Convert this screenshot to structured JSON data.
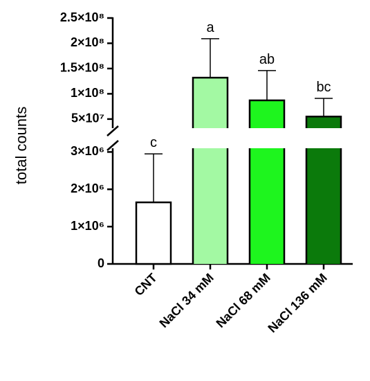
{
  "chart_data": {
    "type": "bar",
    "y_label": "total counts",
    "categories": [
      "CNT",
      "NaCl 34 mM",
      "NaCl 68 mM",
      "NaCl 136 mM"
    ],
    "values": [
      1650000,
      132000000,
      87000000,
      55000000
    ],
    "errors": [
      1300000,
      77000000,
      59000000,
      36000000
    ],
    "annotations": [
      "c",
      "a",
      "ab",
      "bc"
    ],
    "colors": [
      "#ffffff",
      "#a3f9a3",
      "#1ef51e",
      "#0b7a0b"
    ],
    "y_segments": [
      {
        "ylim": [
          0,
          3100000
        ],
        "yticks": [
          0,
          {
            "value": 1000000,
            "label": "1×10⁶"
          },
          {
            "value": 2000000,
            "label": "2×10⁶"
          },
          {
            "value": 3000000,
            "label": "3×10⁶"
          }
        ]
      },
      {
        "ylim": [
          32000000,
          250000000
        ],
        "yticks": [
          {
            "value": 50000000,
            "label": "5×10⁷"
          },
          {
            "value": 100000000,
            "label": "1×10⁸"
          },
          {
            "value": 150000000,
            "label": "1.5×10⁸"
          },
          {
            "value": 200000000,
            "label": "2×10⁸"
          },
          {
            "value": 250000000,
            "label": "2.5×10⁸"
          }
        ]
      }
    ]
  }
}
